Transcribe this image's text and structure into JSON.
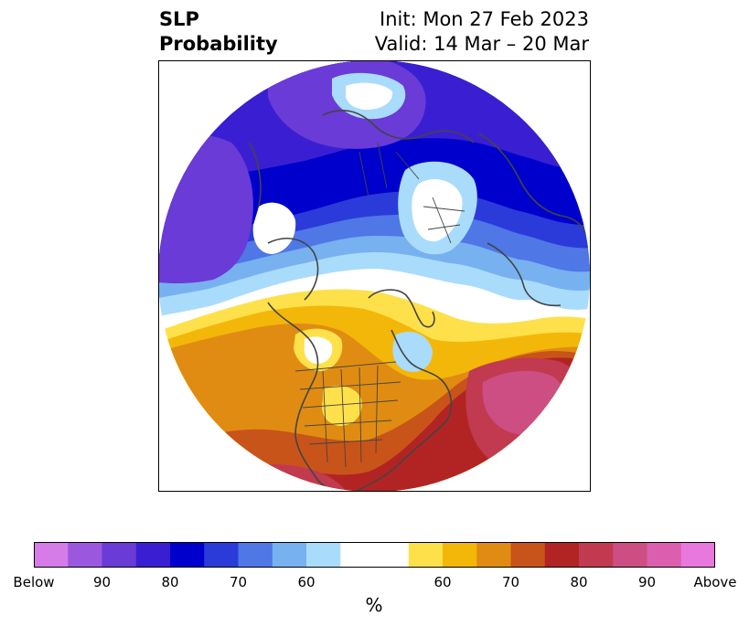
{
  "header": {
    "title_line1": "SLP",
    "title_line2": "Probability",
    "init_text": "Init: Mon 27 Feb 2023",
    "valid_text": "Valid: 14 Mar – 20 Mar"
  },
  "colorbar": {
    "unit": "%",
    "labels": [
      "Below",
      "90",
      "80",
      "70",
      "60",
      "60",
      "70",
      "80",
      "90",
      "Above"
    ],
    "below_colors": [
      "#d57ce8",
      "#9b58df",
      "#6a3bd6",
      "#3a1fd2",
      "#0000cc",
      "#2a3bda",
      "#4f77e6",
      "#77b1f0",
      "#a9dbfb"
    ],
    "neutral_color": "#ffffff",
    "above_colors": [
      "#fee14a",
      "#f3b70a",
      "#e08c12",
      "#c8541a",
      "#b22424",
      "#c13a4f",
      "#cc4e83",
      "#db5fae",
      "#e878de"
    ]
  },
  "map": {
    "projection": "north-polar-stereographic",
    "border_color": "#444444",
    "land_color": "none"
  }
}
